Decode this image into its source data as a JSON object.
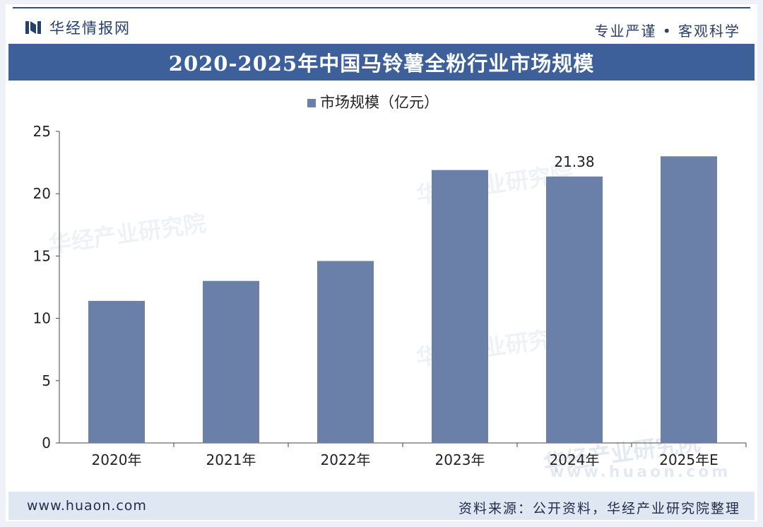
{
  "header": {
    "brand_name": "华经情报网",
    "logo_icon": "huajing-logo-icon",
    "slogan": "专业严谨 • 客观科学"
  },
  "watermark": {
    "text": "华经产业研究院",
    "url": "www.huaon.com"
  },
  "footer": {
    "url": "www.huaon.com",
    "source": "资料来源：公开资料，华经产业研究院整理"
  },
  "colors": {
    "bar": "#6a80a8",
    "title_band": "#3d5f9a",
    "header_text": "#24406f",
    "footer_band": "#dfe7f3"
  },
  "chart_data": {
    "type": "bar",
    "title": "2020-2025年中国马铃薯全粉行业市场规模",
    "categories": [
      "2020年",
      "2021年",
      "2022年",
      "2023年",
      "2024年",
      "2025年E"
    ],
    "series": [
      {
        "name": "市场规模（亿元）",
        "values": [
          11.4,
          13.0,
          14.6,
          21.9,
          21.38,
          23.0
        ]
      }
    ],
    "data_labels": [
      {
        "category": "2024年",
        "text": "21.38"
      }
    ],
    "ylim": [
      0,
      25
    ],
    "yticks": [
      0,
      5,
      10,
      15,
      20,
      25
    ],
    "legend_position": "top-center",
    "grid": false
  }
}
